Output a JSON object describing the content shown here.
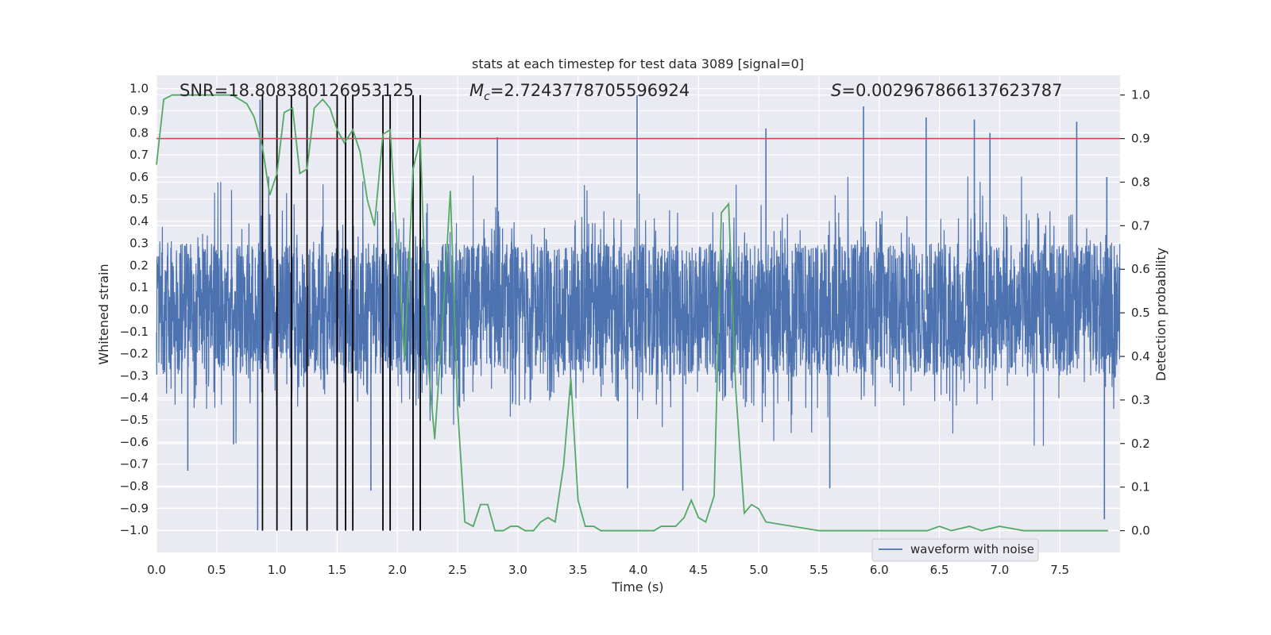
{
  "chart_data": {
    "type": "line",
    "title": "stats at each timestep for test data 3089 [signal=0]",
    "xlabel": "Time (s)",
    "ylabel_left": "Whitened strain",
    "ylabel_right": "Detection probability",
    "xlim": [
      0.0,
      8.0
    ],
    "ylim_left": [
      -1.1,
      1.06
    ],
    "ylim_right": [
      -0.05,
      1.045
    ],
    "x_ticks": [
      0.0,
      0.5,
      1.0,
      1.5,
      2.0,
      2.5,
      3.0,
      3.5,
      4.0,
      4.5,
      5.0,
      5.5,
      6.0,
      6.5,
      7.0,
      7.5
    ],
    "x_tick_labels": [
      "0.0",
      "0.5",
      "1.0",
      "1.5",
      "2.0",
      "2.5",
      "3.0",
      "3.5",
      "4.0",
      "4.5",
      "5.0",
      "5.5",
      "6.0",
      "6.5",
      "7.0",
      "7.5"
    ],
    "y_left_ticks": [
      -1.0,
      -0.9,
      -0.8,
      -0.7,
      -0.6,
      -0.5,
      -0.4,
      -0.3,
      -0.2,
      -0.1,
      0.0,
      0.1,
      0.2,
      0.3,
      0.4,
      0.5,
      0.6,
      0.7,
      0.8,
      0.9,
      1.0
    ],
    "y_left_tick_labels": [
      "−1.0",
      "−0.9",
      "−0.8",
      "−0.7",
      "−0.6",
      "−0.5",
      "−0.4",
      "−0.3",
      "−0.2",
      "−0.1",
      "0.0",
      "0.1",
      "0.2",
      "0.3",
      "0.4",
      "0.5",
      "0.6",
      "0.7",
      "0.8",
      "0.9",
      "1.0"
    ],
    "y_right_ticks": [
      0.0,
      0.1,
      0.2,
      0.3,
      0.4,
      0.5,
      0.6,
      0.7,
      0.8,
      0.9,
      1.0
    ],
    "y_right_tick_labels": [
      "0.0",
      "0.1",
      "0.2",
      "0.3",
      "0.4",
      "0.5",
      "0.6",
      "0.7",
      "0.8",
      "0.9",
      "1.0"
    ],
    "stats": {
      "snr": "SNR=18.808380126953125",
      "mc_symbol": "M",
      "mc_sub": "c",
      "mc_value": "=2.7243778705596924",
      "s_symbol": "S",
      "s_value": "=0.002967866137623787"
    },
    "threshold": 0.9,
    "waveform": {
      "name": "waveform with noise",
      "color": "#4c72b0",
      "samples": 4096,
      "core_amplitude": 0.3,
      "spikes": [
        {
          "t": 0.84,
          "v": -1.0
        },
        {
          "t": 0.86,
          "v": 0.95
        },
        {
          "t": 1.0,
          "v": -0.64
        },
        {
          "t": 3.99,
          "v": 0.97
        },
        {
          "t": 5.06,
          "v": 0.82
        },
        {
          "t": 5.87,
          "v": 0.92
        },
        {
          "t": 6.39,
          "v": 0.87
        },
        {
          "t": 7.87,
          "v": -0.95
        },
        {
          "t": 7.89,
          "v": 0.6
        },
        {
          "t": 2.83,
          "v": 0.78
        },
        {
          "t": 3.91,
          "v": -0.81
        },
        {
          "t": 4.37,
          "v": -0.82
        },
        {
          "t": 5.59,
          "v": -0.81
        },
        {
          "t": 6.79,
          "v": 0.86
        },
        {
          "t": 6.92,
          "v": 0.8
        },
        {
          "t": 7.64,
          "v": 0.85
        },
        {
          "t": 0.64,
          "v": -0.61
        },
        {
          "t": 0.26,
          "v": -0.73
        },
        {
          "t": 1.78,
          "v": -0.82
        }
      ]
    },
    "vertical_markers": [
      0.88,
      1.0,
      1.12,
      1.25,
      1.5,
      1.57,
      1.63,
      1.88,
      1.94,
      2.13,
      2.19
    ],
    "probability": {
      "color": "#55a868",
      "x": [
        0.0,
        0.06,
        0.13,
        0.19,
        0.25,
        0.31,
        0.38,
        0.44,
        0.5,
        0.56,
        0.63,
        0.69,
        0.75,
        0.81,
        0.88,
        0.94,
        1.0,
        1.06,
        1.13,
        1.19,
        1.25,
        1.31,
        1.38,
        1.44,
        1.5,
        1.56,
        1.63,
        1.69,
        1.75,
        1.81,
        1.88,
        1.94,
        2.0,
        2.06,
        2.13,
        2.19,
        2.25,
        2.31,
        2.38,
        2.44,
        2.5,
        2.56,
        2.63,
        2.69,
        2.75,
        2.81,
        2.88,
        2.94,
        3.0,
        3.06,
        3.13,
        3.19,
        3.25,
        3.31,
        3.38,
        3.44,
        3.5,
        3.56,
        3.63,
        3.69,
        3.75,
        3.81,
        3.88,
        3.94,
        4.0,
        4.06,
        4.13,
        4.19,
        4.25,
        4.31,
        4.38,
        4.44,
        4.5,
        4.56,
        4.63,
        4.69,
        4.75,
        4.81,
        4.88,
        4.94,
        5.0,
        5.06,
        5.5,
        6.0,
        6.4,
        6.5,
        6.6,
        6.75,
        6.85,
        7.0,
        7.2,
        7.5,
        7.9
      ],
      "y": [
        0.84,
        0.99,
        1.0,
        1.0,
        1.0,
        1.0,
        1.0,
        1.0,
        1.0,
        1.0,
        1.0,
        0.99,
        0.98,
        0.95,
        0.88,
        0.77,
        0.82,
        0.96,
        0.97,
        0.82,
        0.83,
        0.97,
        0.99,
        0.97,
        0.92,
        0.89,
        0.92,
        0.87,
        0.76,
        0.7,
        0.91,
        0.92,
        0.65,
        0.39,
        0.83,
        0.9,
        0.4,
        0.21,
        0.5,
        0.78,
        0.28,
        0.02,
        0.01,
        0.06,
        0.06,
        0.0,
        0.0,
        0.01,
        0.01,
        0.0,
        0.0,
        0.02,
        0.03,
        0.02,
        0.15,
        0.35,
        0.07,
        0.01,
        0.01,
        0.0,
        0.0,
        0.0,
        0.0,
        0.0,
        0.0,
        0.0,
        0.0,
        0.01,
        0.01,
        0.01,
        0.03,
        0.07,
        0.03,
        0.02,
        0.08,
        0.73,
        0.75,
        0.32,
        0.04,
        0.06,
        0.05,
        0.02,
        0.0,
        0.0,
        0.0,
        0.01,
        0.0,
        0.01,
        0.0,
        0.01,
        0.0,
        0.0,
        0.0
      ]
    }
  },
  "legend": {
    "label": "waveform with noise"
  }
}
